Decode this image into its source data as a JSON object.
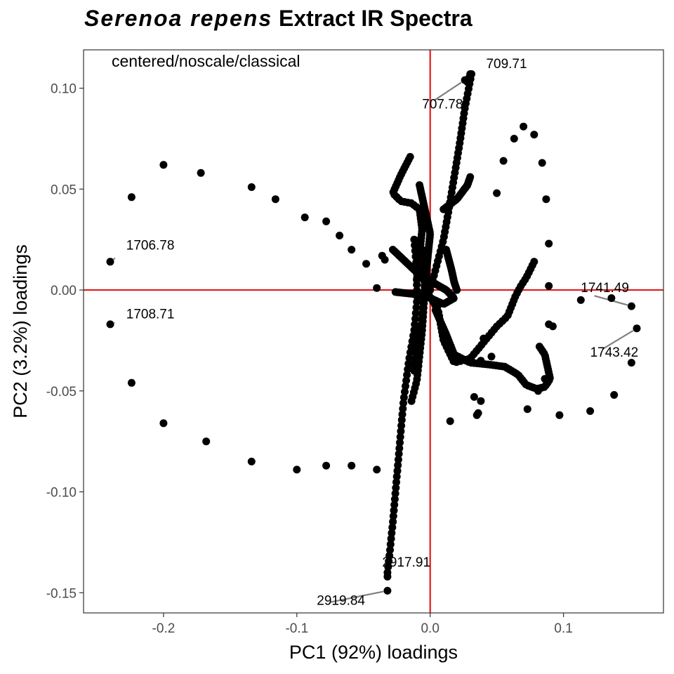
{
  "chart_data": {
    "type": "scatter",
    "title_italic": "Serenoa repens",
    "title_rest": "Extract IR Spectra",
    "xlabel": "PC1 (92%) loadings",
    "ylabel": "PC2 (3.2%) loadings",
    "annotation": "centered/noscale/classical",
    "xlim": [
      -0.26,
      0.175
    ],
    "ylim": [
      -0.16,
      0.119
    ],
    "x_ticks": [
      -0.2,
      -0.1,
      0.0,
      0.1
    ],
    "x_tick_labels": [
      "-0.2",
      "-0.1",
      "0.0",
      "0.1"
    ],
    "y_ticks": [
      -0.15,
      -0.1,
      -0.05,
      0.0,
      0.05,
      0.1
    ],
    "y_tick_labels": [
      "-0.15",
      "-0.10",
      "-0.05",
      "0.00",
      "0.05",
      "0.10"
    ],
    "reference_lines": {
      "x": 0,
      "y": 0,
      "color": "#e41a1c"
    },
    "point_color": "#000000",
    "labeled_points": [
      {
        "label": "709.71",
        "x": 0.03,
        "y": 0.107,
        "label_x": 0.042,
        "label_y": 0.11
      },
      {
        "label": "707.78",
        "x": 0.026,
        "y": 0.104,
        "label_x": -0.006,
        "label_y": 0.09
      },
      {
        "label": "1706.78",
        "x": -0.24,
        "y": 0.014,
        "label_x": -0.228,
        "label_y": 0.02
      },
      {
        "label": "1708.71",
        "x": -0.24,
        "y": -0.017,
        "label_x": -0.228,
        "label_y": -0.014
      },
      {
        "label": "1741.49",
        "x": 0.151,
        "y": -0.008,
        "label_x": 0.113,
        "label_y": -0.001
      },
      {
        "label": "1743.42",
        "x": 0.155,
        "y": -0.019,
        "label_x": 0.12,
        "label_y": -0.033
      },
      {
        "label": "2917.91",
        "x": -0.032,
        "y": -0.142,
        "label_x": -0.036,
        "label_y": -0.137
      },
      {
        "label": "2919.84",
        "x": -0.032,
        "y": -0.149,
        "label_x": -0.085,
        "label_y": -0.156
      }
    ],
    "points": [
      [
        -0.24,
        0.014
      ],
      [
        -0.24,
        -0.017
      ],
      [
        -0.224,
        0.046
      ],
      [
        -0.224,
        -0.046
      ],
      [
        -0.2,
        0.062
      ],
      [
        -0.2,
        -0.066
      ],
      [
        -0.172,
        0.058
      ],
      [
        -0.168,
        -0.075
      ],
      [
        -0.134,
        0.051
      ],
      [
        -0.134,
        -0.085
      ],
      [
        -0.116,
        0.045
      ],
      [
        -0.1,
        -0.089
      ],
      [
        -0.094,
        0.036
      ],
      [
        -0.078,
        0.034
      ],
      [
        -0.078,
        -0.087
      ],
      [
        -0.068,
        0.027
      ],
      [
        -0.059,
        0.02
      ],
      [
        -0.059,
        -0.087
      ],
      [
        -0.048,
        0.013
      ],
      [
        -0.04,
        -0.089
      ],
      [
        -0.04,
        0.001
      ],
      [
        -0.036,
        0.017
      ],
      [
        -0.034,
        0.015
      ],
      [
        -0.032,
        -0.142
      ],
      [
        -0.032,
        -0.149
      ],
      [
        0.03,
        0.107
      ],
      [
        0.029,
        0.105
      ],
      [
        0.028,
        0.103
      ],
      [
        0.026,
        0.104
      ],
      [
        0.05,
        0.048
      ],
      [
        0.055,
        0.064
      ],
      [
        0.063,
        0.075
      ],
      [
        0.07,
        0.081
      ],
      [
        0.078,
        0.077
      ],
      [
        0.084,
        0.063
      ],
      [
        0.087,
        0.045
      ],
      [
        0.089,
        0.023
      ],
      [
        0.089,
        0.002
      ],
      [
        0.089,
        -0.017
      ],
      [
        0.092,
        -0.018
      ],
      [
        0.097,
        -0.062
      ],
      [
        0.113,
        -0.005
      ],
      [
        0.12,
        -0.06
      ],
      [
        0.136,
        -0.004
      ],
      [
        0.138,
        -0.052
      ],
      [
        0.151,
        -0.008
      ],
      [
        0.155,
        -0.019
      ],
      [
        0.151,
        -0.036
      ],
      [
        0.015,
        -0.065
      ],
      [
        0.033,
        -0.053
      ],
      [
        0.035,
        -0.062
      ],
      [
        0.036,
        -0.061
      ],
      [
        0.038,
        -0.055
      ],
      [
        0.038,
        -0.035
      ],
      [
        0.04,
        -0.024
      ],
      [
        0.046,
        -0.033
      ],
      [
        0.073,
        -0.059
      ],
      [
        0.081,
        -0.05
      ],
      [
        0.086,
        -0.044
      ]
    ],
    "trajectories": [
      {
        "n": 45,
        "pts": [
          [
            0.031,
            0.107
          ],
          [
            0.026,
            0.09
          ],
          [
            0.022,
            0.072
          ],
          [
            0.018,
            0.056
          ],
          [
            0.014,
            0.04
          ],
          [
            0.01,
            0.025
          ],
          [
            0.004,
            0.01
          ],
          [
            0.0,
            0.0
          ]
        ]
      },
      {
        "n": 45,
        "pts": [
          [
            -0.015,
            0.066
          ],
          [
            -0.022,
            0.057
          ],
          [
            -0.028,
            0.048
          ],
          [
            -0.022,
            0.044
          ],
          [
            -0.014,
            0.043
          ],
          [
            -0.008,
            0.04
          ],
          [
            -0.006,
            0.03
          ],
          [
            -0.008,
            0.018
          ],
          [
            -0.01,
            0.005
          ]
        ]
      },
      {
        "n": 45,
        "pts": [
          [
            -0.008,
            0.052
          ],
          [
            -0.004,
            0.04
          ],
          [
            0.0,
            0.028
          ],
          [
            -0.002,
            0.015
          ],
          [
            -0.004,
            0.0
          ]
        ]
      },
      {
        "n": 65,
        "pts": [
          [
            -0.028,
            0.02
          ],
          [
            -0.02,
            0.015
          ],
          [
            -0.012,
            0.01
          ],
          [
            -0.004,
            0.006
          ],
          [
            0.004,
            0.003
          ],
          [
            0.012,
            0.0
          ],
          [
            0.018,
            -0.004
          ],
          [
            0.01,
            -0.007
          ],
          [
            0.0,
            -0.004
          ],
          [
            -0.012,
            -0.002
          ],
          [
            -0.026,
            -0.001
          ]
        ]
      },
      {
        "n": 60,
        "pts": [
          [
            -0.012,
            0.025
          ],
          [
            -0.01,
            0.01
          ],
          [
            -0.01,
            -0.006
          ],
          [
            -0.012,
            -0.02
          ],
          [
            -0.016,
            -0.035
          ],
          [
            -0.02,
            -0.055
          ],
          [
            -0.022,
            -0.07
          ],
          [
            -0.024,
            -0.085
          ],
          [
            -0.026,
            -0.1
          ],
          [
            -0.028,
            -0.115
          ],
          [
            -0.03,
            -0.128
          ],
          [
            -0.032,
            -0.14
          ]
        ]
      },
      {
        "n": 35,
        "pts": [
          [
            -0.006,
            0.02
          ],
          [
            -0.004,
            0.0
          ],
          [
            -0.006,
            -0.02
          ],
          [
            -0.01,
            -0.045
          ],
          [
            -0.014,
            -0.055
          ]
        ]
      },
      {
        "n": 25,
        "pts": [
          [
            -0.003,
            0.01
          ],
          [
            -0.006,
            -0.015
          ],
          [
            -0.01,
            -0.03
          ],
          [
            -0.012,
            -0.04
          ]
        ]
      },
      {
        "n": 55,
        "pts": [
          [
            -0.004,
            0.001
          ],
          [
            0.006,
            -0.01
          ],
          [
            0.01,
            -0.025
          ],
          [
            0.018,
            -0.036
          ],
          [
            0.03,
            -0.034
          ],
          [
            0.04,
            -0.026
          ],
          [
            0.05,
            -0.018
          ],
          [
            0.058,
            -0.013
          ],
          [
            0.064,
            -0.003
          ],
          [
            0.068,
            0.002
          ],
          [
            0.072,
            0.006
          ],
          [
            0.078,
            0.014
          ]
        ]
      },
      {
        "n": 70,
        "pts": [
          [
            0.004,
            -0.01
          ],
          [
            0.012,
            -0.022
          ],
          [
            0.018,
            -0.032
          ],
          [
            0.03,
            -0.036
          ],
          [
            0.045,
            -0.037
          ],
          [
            0.056,
            -0.038
          ],
          [
            0.066,
            -0.042
          ],
          [
            0.072,
            -0.047
          ],
          [
            0.08,
            -0.049
          ],
          [
            0.086,
            -0.048
          ],
          [
            0.09,
            -0.044
          ],
          [
            0.086,
            -0.032
          ],
          [
            0.082,
            -0.028
          ]
        ]
      },
      {
        "n": 20,
        "pts": [
          [
            0.01,
            0.04
          ],
          [
            0.02,
            0.045
          ],
          [
            0.028,
            0.052
          ],
          [
            0.03,
            0.056
          ]
        ]
      },
      {
        "n": 20,
        "pts": [
          [
            0.012,
            0.02
          ],
          [
            0.016,
            0.01
          ],
          [
            0.018,
            0.004
          ],
          [
            0.02,
            0.0
          ]
        ]
      }
    ]
  }
}
